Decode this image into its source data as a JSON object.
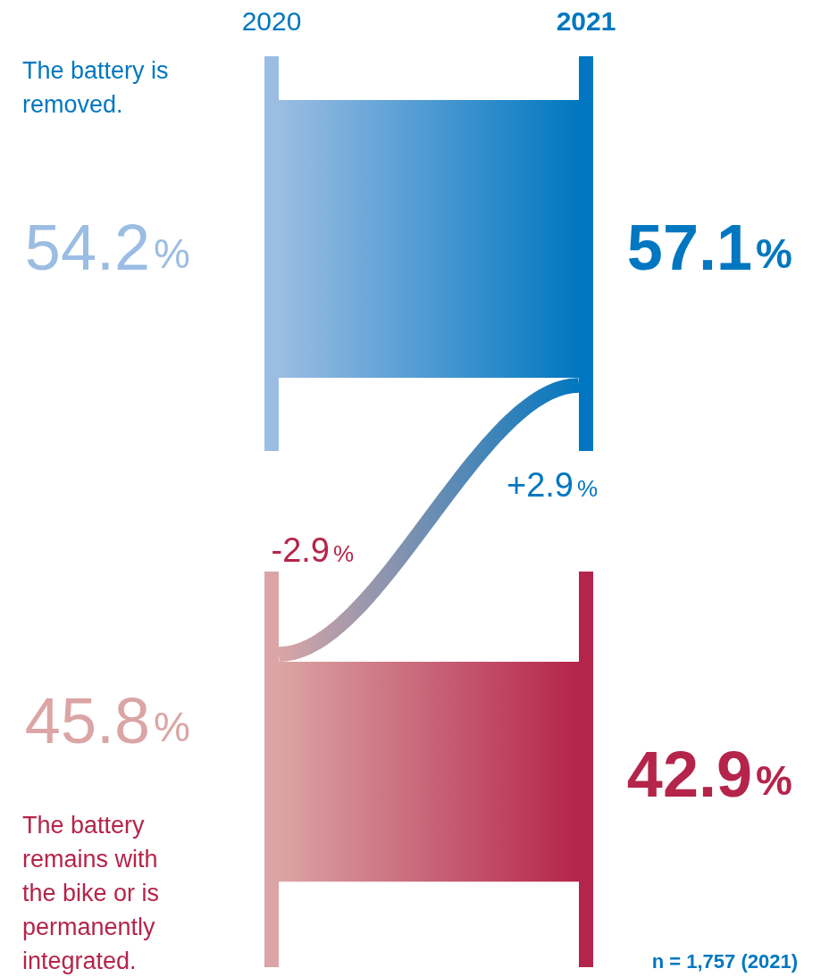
{
  "chart_data": {
    "type": "other",
    "categories": [
      "The battery is removed.",
      "The battery remains with the bike or is permanently integrated."
    ],
    "series": [
      {
        "name": "2020",
        "colors": [
          "#9bbde3",
          "#dba5a5"
        ],
        "values": [
          54.2,
          45.8
        ],
        "value_labels": [
          "54.2%",
          "45.8%"
        ]
      },
      {
        "name": "2021",
        "colors": [
          "#0077c0",
          "#b5244a"
        ],
        "values": [
          57.1,
          42.9
        ],
        "value_labels": [
          "57.1%",
          "42.9%"
        ]
      }
    ],
    "annotations": [
      "+2.9%",
      "-2.9%",
      "n = 1,757 (2021)"
    ]
  }
}
